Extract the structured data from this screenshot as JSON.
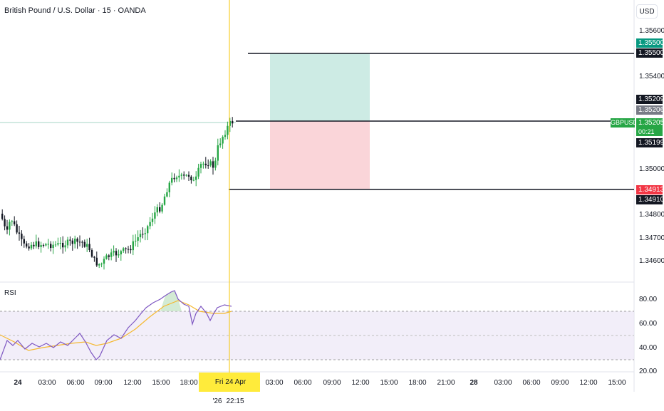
{
  "header": {
    "title": "British Pound / U.S. Dollar · 15 · OANDA",
    "currency_button": "USD"
  },
  "price_axis": {
    "ticks": [
      "1.35600",
      "1.35400",
      "1.35000",
      "1.34800",
      "1.34700",
      "1.34600"
    ],
    "labels": {
      "take_profit_green": "1.35500",
      "take_profit_black": "1.35500",
      "level_a": "1.35209",
      "level_b": "1.35206",
      "last_price": "1.35205",
      "countdown": "00:21",
      "level_c": "1.35199",
      "stop_loss_red": "1.34913",
      "stop_loss_black": "1.34910"
    },
    "symbol_tag": "GBPUSD"
  },
  "rsi": {
    "title": "RSI",
    "ticks": [
      "80.00",
      "60.00",
      "40.00",
      "20.00"
    ],
    "upper_band": 70,
    "lower_band": 30,
    "mid": 50
  },
  "time_axis": {
    "ticks": [
      {
        "label": "24",
        "bold": true
      },
      {
        "label": "03:00"
      },
      {
        "label": "06:00"
      },
      {
        "label": "09:00"
      },
      {
        "label": "12:00"
      },
      {
        "label": "15:00"
      },
      {
        "label": "18:00"
      },
      {
        "label": "03:00"
      },
      {
        "label": "06:00"
      },
      {
        "label": "09:00"
      },
      {
        "label": "12:00"
      },
      {
        "label": "15:00"
      },
      {
        "label": "18:00"
      },
      {
        "label": "21:00"
      },
      {
        "label": "28",
        "bold": true
      },
      {
        "label": "03:00"
      },
      {
        "label": "06:00"
      },
      {
        "label": "09:00"
      },
      {
        "label": "12:00"
      },
      {
        "label": "15:00"
      }
    ],
    "crosshair_date": "Fri 24 Apr '26",
    "crosshair_time": "22:15"
  },
  "colors": {
    "up": "#26a645",
    "down": "#131722",
    "profit_zone": "#cdebe4",
    "loss_zone": "#fad5d9",
    "crosshair": "#f7c600",
    "rsi_line": "#7e57c2",
    "rsi_ma": "#f5b82e",
    "rsi_band": "#ede7f6"
  },
  "position_tool": {
    "entry": 1.35205,
    "take_profit": 1.355,
    "stop_loss": 1.3491
  }
}
